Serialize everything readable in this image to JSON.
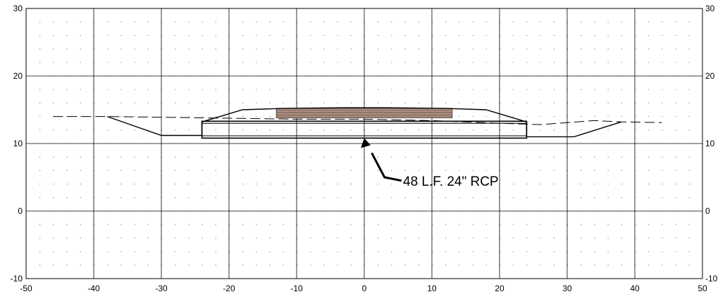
{
  "x_ticks": [
    "-50",
    "-40",
    "-30",
    "-20",
    "-10",
    "0",
    "10",
    "20",
    "30",
    "40",
    "50"
  ],
  "y_ticks_left": [
    "30",
    "20",
    "10",
    "0",
    "-10"
  ],
  "y_ticks_right": [
    "30",
    "20",
    "10",
    "0",
    "-10"
  ],
  "callout": {
    "text": "48 L.F. 24\" RCP"
  },
  "colors": {
    "line": "#000000",
    "pavement": "#b89a8a",
    "pavement_line": "#5a4a44"
  },
  "chart_data": {
    "type": "line",
    "xlim": [
      -50,
      50
    ],
    "ylim": [
      -10,
      30
    ],
    "grid": true,
    "series_geometry": {
      "proposed_section": [
        [
          -38,
          14
        ],
        [
          -30,
          11.2
        ],
        [
          -24,
          11.2
        ],
        [
          -24,
          13.2
        ],
        [
          -18,
          15
        ],
        [
          -12,
          15.2
        ],
        [
          -3,
          15.3
        ],
        [
          3,
          15.3
        ],
        [
          12,
          15.2
        ],
        [
          18,
          15
        ],
        [
          24,
          13.2
        ],
        [
          24,
          11
        ],
        [
          31,
          11
        ],
        [
          38,
          13.2
        ]
      ],
      "existing_ground": [
        [
          -46,
          14
        ],
        [
          -38,
          14
        ],
        [
          -10,
          13.6
        ],
        [
          0,
          13.6
        ],
        [
          10,
          13.4
        ],
        [
          20,
          13
        ],
        [
          26,
          12.8
        ],
        [
          34,
          13.4
        ],
        [
          38,
          13.2
        ],
        [
          44,
          13.1
        ]
      ],
      "pipe_box": {
        "x": [
          -24,
          24
        ],
        "y": [
          10.8,
          13.3
        ]
      },
      "pavement_layers": {
        "x": [
          -13,
          13
        ],
        "y": [
          13.8,
          15.2
        ]
      },
      "callout_pointer": {
        "tip": [
          0,
          10.8
        ],
        "elbow": [
          3,
          5
        ],
        "end": [
          5.5,
          4.5
        ]
      }
    }
  }
}
